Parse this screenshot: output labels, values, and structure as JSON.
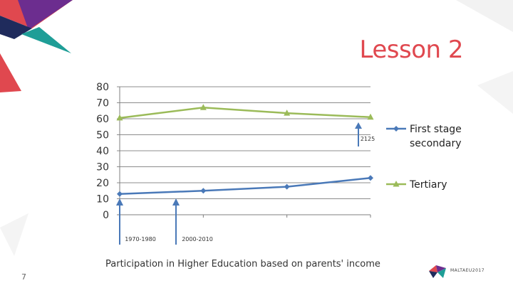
{
  "slide": {
    "title": "Lesson 2",
    "caption": "Participation in Higher Education based on parents' income",
    "slide_number": "7",
    "logo_text": "MALTAEU2017",
    "accent_colors": [
      "#e0484f",
      "#6c2d8f",
      "#1f9e97",
      "#1f2b5c"
    ]
  },
  "chart_data": {
    "type": "line",
    "categories": [
      "1970-1980",
      "",
      "2000-2010",
      "2125"
    ],
    "ylim": [
      0,
      80
    ],
    "yticks": [
      0,
      10,
      20,
      30,
      40,
      50,
      60,
      70,
      80
    ],
    "grid": true,
    "legend_position": "right",
    "series": [
      {
        "name": "First stage secondary",
        "values": [
          13,
          15,
          17.5,
          23
        ],
        "color": "#4a79b8",
        "marker": "diamond"
      },
      {
        "name": "Tertiary",
        "values": [
          60.5,
          67,
          63.5,
          61
        ],
        "color": "#9bbb59",
        "marker": "triangle"
      }
    ],
    "annotations": [
      {
        "text": "1970-1980",
        "category": 0
      },
      {
        "text": "2000-2010",
        "category": 2
      },
      {
        "text": "2125",
        "category": 3
      }
    ]
  }
}
